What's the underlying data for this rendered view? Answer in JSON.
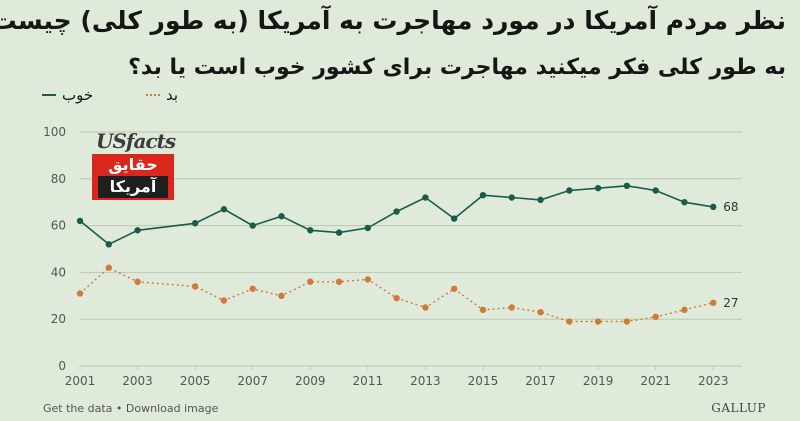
{
  "header": {
    "title": "نظر مردم آمریکا در مورد مهاجرت به آمریکا (به طور کلی) چیست؟",
    "subtitle": "به طور کلی فکر میکنید مهاجرت برای کشور خوب است یا بد؟"
  },
  "colors": {
    "good": "#1a5c4c",
    "bad": "#d07a39",
    "grid": "#b9c9b4",
    "axis_text": "#555555"
  },
  "chart_data": {
    "type": "line",
    "title": "نظر مردم آمریکا در مورد مهاجرت به آمریکا (به طور کلی) چیست؟",
    "xlabel": "",
    "ylabel": "",
    "ylim": [
      0,
      100
    ],
    "xlim": [
      2001,
      2024
    ],
    "yticks": [
      "0",
      "20",
      "40",
      "60",
      "80",
      "100"
    ],
    "xticks": [
      "2001",
      "2003",
      "2005",
      "2007",
      "2009",
      "2011",
      "2013",
      "2015",
      "2017",
      "2019",
      "2021",
      "2023"
    ],
    "x": [
      2001,
      2002,
      2003,
      2005,
      2006,
      2007,
      2008,
      2009,
      2010,
      2011,
      2012,
      2013,
      2014,
      2015,
      2016,
      2017,
      2018,
      2019,
      2020,
      2021,
      2022,
      2023
    ],
    "series": [
      {
        "name": "خوب",
        "values": [
          62,
          52,
          58,
          61,
          67,
          60,
          64,
          58,
          57,
          59,
          66,
          72,
          63,
          73,
          72,
          71,
          75,
          76,
          77,
          75,
          70,
          68
        ],
        "end_label": "68"
      },
      {
        "name": "بد",
        "values": [
          31,
          42,
          36,
          34,
          28,
          33,
          30,
          36,
          36,
          37,
          29,
          25,
          33,
          24,
          25,
          23,
          19,
          19,
          19,
          21,
          24,
          27
        ],
        "end_label": "27"
      }
    ]
  },
  "logo": {
    "en": "USfacts",
    "fa_line1": "حقایق",
    "fa_line2": "آمریکا"
  },
  "footer": {
    "left": "Get the data • Download image",
    "right": "GALLUP"
  }
}
